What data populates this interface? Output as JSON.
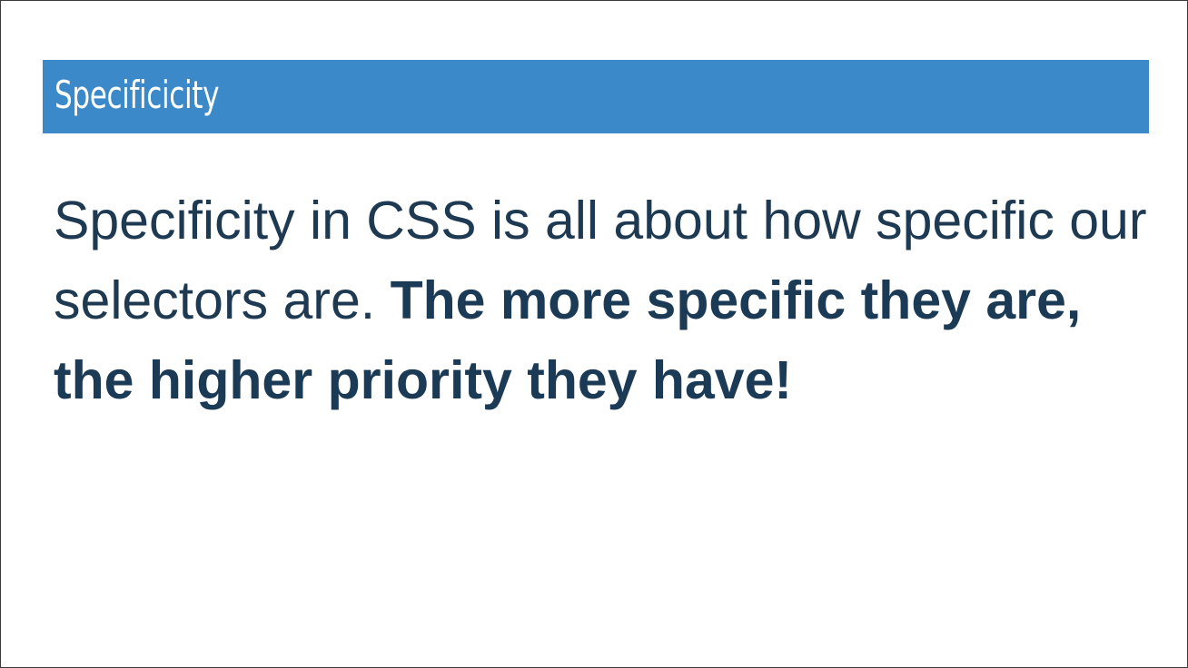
{
  "slide": {
    "title": "Specificicity",
    "body_regular": "Specificity in CSS is all about how specific our selectors are.",
    "body_emphasis": "The more specific they are, the higher priority they have!"
  },
  "colors": {
    "title_bar": "#3b89c9",
    "title_text": "#ffffff",
    "body_text": "#1d3b54",
    "background": "#ffffff"
  }
}
